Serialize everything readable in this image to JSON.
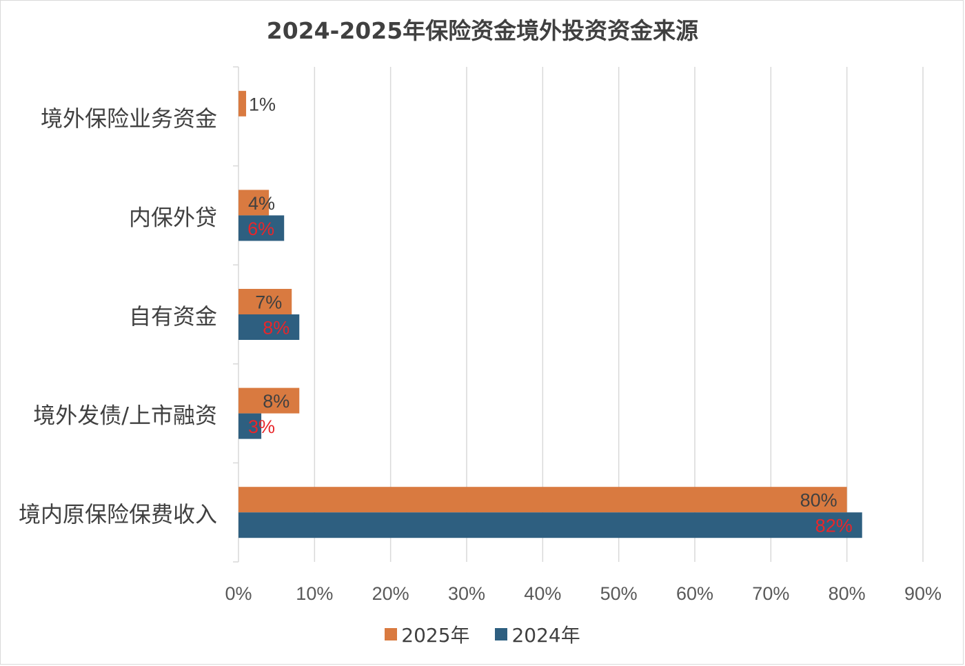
{
  "chart_data": {
    "type": "bar",
    "orientation": "horizontal",
    "title": "2024-2025年保险资金境外投资资金来源",
    "categories": [
      "境外保险业务资金",
      "内保外贷",
      "自有资金",
      "境外发债/上市融资",
      "境内原保险保费收入"
    ],
    "series": [
      {
        "name": "2025年",
        "color": "#D97A40",
        "label_color": "#404040",
        "values": [
          1,
          4,
          7,
          8,
          80
        ],
        "labels": [
          "1%",
          "4%",
          "7%",
          "8%",
          "80%"
        ]
      },
      {
        "name": "2024年",
        "color": "#2E5F80",
        "label_color": "#E8262A",
        "values": [
          null,
          6,
          8,
          3,
          82
        ],
        "labels": [
          "",
          "6%",
          "8%",
          "3%",
          "82%"
        ]
      }
    ],
    "xlim": [
      0,
      90
    ],
    "xticks": [
      "0%",
      "10%",
      "20%",
      "30%",
      "40%",
      "50%",
      "60%",
      "70%",
      "80%",
      "90%"
    ],
    "grid": true,
    "legend_position": "bottom",
    "xlabel": "",
    "ylabel": ""
  }
}
